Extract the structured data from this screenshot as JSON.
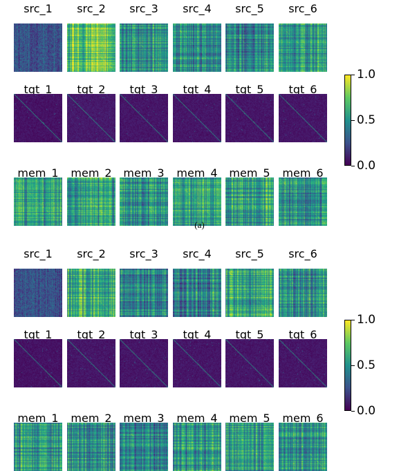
{
  "caption": "(a)",
  "colorbar": {
    "ticks": [
      "1.0",
      "0.5",
      "0.0"
    ]
  },
  "chart_data": [
    {
      "type": "heatmap",
      "panel": "top",
      "rows": [
        {
          "prefix": "src",
          "titles": [
            "src_1",
            "src_2",
            "src_3",
            "src_4",
            "src_5",
            "src_6"
          ],
          "mean": [
            0.25,
            0.72,
            0.5,
            0.48,
            0.45,
            0.52
          ],
          "pattern": [
            "noise",
            "stripes",
            "stripes",
            "stripes",
            "stripes",
            "stripes"
          ]
        },
        {
          "prefix": "tgt",
          "titles": [
            "tgt_1",
            "tgt_2",
            "tgt_3",
            "tgt_4",
            "tgt_5",
            "tgt_6"
          ],
          "mean": [
            0.05,
            0.07,
            0.06,
            0.06,
            0.06,
            0.06
          ],
          "pattern": [
            "diag",
            "diag",
            "diag",
            "diag",
            "diag",
            "diag"
          ]
        },
        {
          "prefix": "mem",
          "titles": [
            "mem_1",
            "mem_2",
            "mem_3",
            "mem_4",
            "mem_5",
            "mem_6"
          ],
          "mean": [
            0.55,
            0.55,
            0.52,
            0.58,
            0.55,
            0.48
          ],
          "pattern": [
            "stripes",
            "stripes",
            "stripes",
            "stripes",
            "stripes",
            "stripes"
          ]
        }
      ],
      "zlim": [
        0.0,
        1.0
      ],
      "colormap": "viridis"
    },
    {
      "type": "heatmap",
      "panel": "bottom",
      "rows": [
        {
          "prefix": "src",
          "titles": [
            "src_1",
            "src_2",
            "src_3",
            "src_4",
            "src_5",
            "src_6"
          ],
          "mean": [
            0.25,
            0.65,
            0.48,
            0.45,
            0.62,
            0.48
          ],
          "pattern": [
            "noise",
            "stripes",
            "stripes",
            "stripes",
            "stripes",
            "stripes"
          ]
        },
        {
          "prefix": "tgt",
          "titles": [
            "tgt_1",
            "tgt_2",
            "tgt_3",
            "tgt_4",
            "tgt_5",
            "tgt_6"
          ],
          "mean": [
            0.05,
            0.06,
            0.06,
            0.06,
            0.06,
            0.06
          ],
          "pattern": [
            "diag",
            "diag",
            "diag",
            "diag",
            "diag",
            "diag"
          ]
        },
        {
          "prefix": "mem",
          "titles": [
            "mem_1",
            "mem_2",
            "mem_3",
            "mem_4",
            "mem_5",
            "mem_6"
          ],
          "mean": [
            0.55,
            0.5,
            0.45,
            0.52,
            0.55,
            0.5
          ],
          "pattern": [
            "stripes",
            "stripes",
            "stripes",
            "stripes",
            "stripes",
            "stripes"
          ]
        }
      ],
      "zlim": [
        0.0,
        1.0
      ],
      "colormap": "viridis"
    }
  ]
}
